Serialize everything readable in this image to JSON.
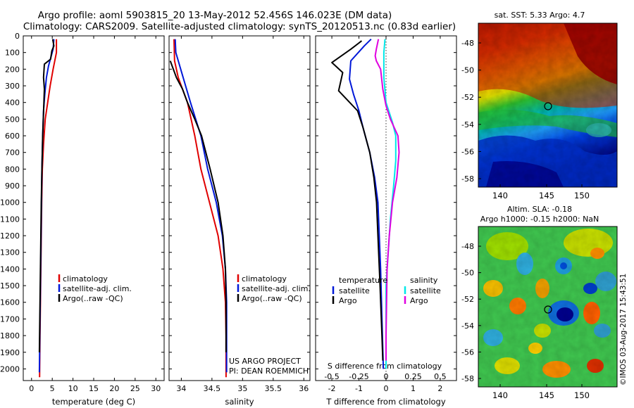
{
  "title": {
    "line1": "Argo profile: aoml 5903815_20 13-May-2012 52.456S 146.023E (DM data)",
    "line2": "Climatology: CARS2009. Satellite-adjusted climatology: synTS_20120513.nc (0.83d earlier)"
  },
  "colors": {
    "climatology": "#e00000",
    "satellite": "#0018d8",
    "argo": "#000000",
    "satellite_s": "#00e8e8",
    "argo_s": "#e000e0"
  },
  "chart_data": [
    {
      "type": "line",
      "name": "temperature",
      "xlabel": "temperature (deg C)",
      "ylabel": "",
      "xlim": [
        -2,
        32
      ],
      "ylim": [
        2070,
        0
      ],
      "xticks": [
        0,
        5,
        10,
        15,
        20,
        25,
        30
      ],
      "yticks": [
        0,
        100,
        200,
        300,
        400,
        500,
        600,
        700,
        800,
        900,
        1000,
        1100,
        1200,
        1300,
        1400,
        1500,
        1600,
        1700,
        1800,
        1900,
        2000
      ],
      "legend": [
        "climatology",
        "satellite-adj. clim.",
        "Argo(..raw -QC)"
      ],
      "series": [
        {
          "name": "climatology",
          "color": "#e00000",
          "points": [
            [
              6,
              20
            ],
            [
              6,
              100
            ],
            [
              5.2,
              200
            ],
            [
              4.5,
              300
            ],
            [
              3.9,
              400
            ],
            [
              3.3,
              500
            ],
            [
              2.9,
              650
            ],
            [
              2.6,
              800
            ],
            [
              2.45,
              1000
            ],
            [
              2.35,
              1200
            ],
            [
              2.2,
              1500
            ],
            [
              2.05,
              1800
            ],
            [
              1.95,
              2050
            ]
          ]
        },
        {
          "name": "satellite-adj. clim.",
          "color": "#0018d8",
          "points": [
            [
              5.4,
              20
            ],
            [
              5.2,
              80
            ],
            [
              4.1,
              180
            ],
            [
              3.6,
              250
            ],
            [
              3.2,
              350
            ],
            [
              2.9,
              450
            ],
            [
              2.7,
              600
            ],
            [
              2.5,
              800
            ],
            [
              2.4,
              1000
            ],
            [
              2.3,
              1200
            ],
            [
              2.15,
              1500
            ],
            [
              2.0,
              1800
            ],
            [
              1.9,
              2020
            ]
          ]
        },
        {
          "name": "Argo(..raw -QC)",
          "color": "#000000",
          "points": [
            [
              5.1,
              20
            ],
            [
              5.4,
              60
            ],
            [
              4.9,
              90
            ],
            [
              4.6,
              140
            ],
            [
              3.1,
              170
            ],
            [
              2.9,
              250
            ],
            [
              3.1,
              320
            ],
            [
              3.0,
              390
            ],
            [
              2.9,
              460
            ],
            [
              2.7,
              600
            ],
            [
              2.5,
              800
            ],
            [
              2.35,
              1000
            ],
            [
              2.2,
              1300
            ],
            [
              2.05,
              1600
            ],
            [
              1.9,
              1900
            ]
          ]
        }
      ]
    },
    {
      "type": "line",
      "name": "salinity",
      "xlabel": "salinity",
      "xlim": [
        33.8,
        36.1
      ],
      "ylim": [
        2070,
        0
      ],
      "xticks": [
        34,
        34.5,
        35,
        35.5,
        36
      ],
      "legend": [
        "climatology",
        "satellite-adj. clim.",
        "Argo(..raw -QC)"
      ],
      "annotation": [
        "US ARGO PROJECT",
        "PI: DEAN ROEMMICH"
      ],
      "series": [
        {
          "name": "climatology",
          "color": "#e00000",
          "points": [
            [
              33.88,
              20
            ],
            [
              33.89,
              150
            ],
            [
              33.95,
              250
            ],
            [
              34.1,
              400
            ],
            [
              34.22,
              600
            ],
            [
              34.32,
              800
            ],
            [
              34.46,
              1000
            ],
            [
              34.6,
              1200
            ],
            [
              34.68,
              1400
            ],
            [
              34.72,
              1600
            ],
            [
              34.73,
              1800
            ],
            [
              34.73,
              2050
            ]
          ]
        },
        {
          "name": "satellite-adj. clim.",
          "color": "#0018d8",
          "points": [
            [
              33.9,
              20
            ],
            [
              33.91,
              100
            ],
            [
              33.99,
              200
            ],
            [
              34.15,
              400
            ],
            [
              34.32,
              600
            ],
            [
              34.43,
              800
            ],
            [
              34.57,
              1000
            ],
            [
              34.67,
              1200
            ],
            [
              34.72,
              1400
            ],
            [
              34.74,
              1600
            ],
            [
              34.74,
              1800
            ],
            [
              34.74,
              2020
            ]
          ]
        },
        {
          "name": "Argo(..raw -QC)",
          "color": "#000000",
          "points": [
            [
              33.82,
              150
            ],
            [
              33.85,
              180
            ],
            [
              33.92,
              250
            ],
            [
              34.02,
              320
            ],
            [
              34.1,
              400
            ],
            [
              34.22,
              500
            ],
            [
              34.33,
              600
            ],
            [
              34.47,
              800
            ],
            [
              34.6,
              1000
            ],
            [
              34.68,
              1200
            ],
            [
              34.72,
              1400
            ],
            [
              34.73,
              1600
            ],
            [
              34.73,
              1900
            ]
          ]
        }
      ]
    },
    {
      "type": "line",
      "name": "difference",
      "xlabel": "T difference from climatology",
      "xlabel_top": "S difference from climatology",
      "xlim": [
        -2.6,
        2.6
      ],
      "ylim": [
        2070,
        0
      ],
      "xticks": [
        -2,
        -1,
        0,
        1,
        2
      ],
      "xticks_s": [
        -0.5,
        -0.25,
        0,
        0.25,
        0.5
      ],
      "legend": {
        "temperature_title": "temperature",
        "salinity_title": "salinity",
        "items_t": [
          "satellite",
          "Argo"
        ],
        "items_s": [
          "satellite",
          "Argo"
        ]
      },
      "series": [
        {
          "name": "T satellite",
          "color": "#0018d8",
          "points": [
            [
              -0.55,
              20
            ],
            [
              -0.8,
              60
            ],
            [
              -1.3,
              150
            ],
            [
              -1.35,
              260
            ],
            [
              -1.2,
              350
            ],
            [
              -1.0,
              450
            ],
            [
              -0.85,
              550
            ],
            [
              -0.6,
              700
            ],
            [
              -0.42,
              850
            ],
            [
              -0.3,
              1000
            ],
            [
              -0.25,
              1200
            ],
            [
              -0.2,
              1400
            ],
            [
              -0.15,
              1700
            ],
            [
              -0.1,
              2000
            ]
          ]
        },
        {
          "name": "T Argo",
          "color": "#000000",
          "points": [
            [
              -0.9,
              30
            ],
            [
              -1.3,
              80
            ],
            [
              -2.0,
              160
            ],
            [
              -1.6,
              220
            ],
            [
              -1.75,
              330
            ],
            [
              -1.4,
              390
            ],
            [
              -1.05,
              450
            ],
            [
              -0.85,
              550
            ],
            [
              -0.6,
              700
            ],
            [
              -0.45,
              850
            ],
            [
              -0.35,
              1000
            ],
            [
              -0.3,
              1200
            ],
            [
              -0.22,
              1500
            ],
            [
              -0.15,
              1800
            ],
            [
              -0.12,
              1950
            ]
          ]
        },
        {
          "name": "S satellite",
          "color": "#00e8e8",
          "points": [
            [
              -0.01,
              20
            ],
            [
              -0.02,
              100
            ],
            [
              -0.02,
              250
            ],
            [
              0.0,
              400
            ],
            [
              0.06,
              520
            ],
            [
              0.09,
              600
            ],
            [
              0.09,
              750
            ],
            [
              0.07,
              900
            ],
            [
              0.04,
              1100
            ],
            [
              0.02,
              1300
            ],
            [
              0.0,
              1500
            ],
            [
              0.0,
              1700
            ],
            [
              0.0,
              2000
            ]
          ]
        },
        {
          "name": "S Argo",
          "color": "#e000e0",
          "points": [
            [
              -0.07,
              20
            ],
            [
              -0.09,
              80
            ],
            [
              -0.1,
              120
            ],
            [
              -0.09,
              150
            ],
            [
              -0.05,
              200
            ],
            [
              -0.03,
              320
            ],
            [
              0.0,
              420
            ],
            [
              0.04,
              500
            ],
            [
              0.11,
              600
            ],
            [
              0.12,
              700
            ],
            [
              0.1,
              850
            ],
            [
              0.06,
              1000
            ],
            [
              0.03,
              1200
            ],
            [
              0.01,
              1400
            ],
            [
              0.0,
              1800
            ],
            [
              0.0,
              1950
            ]
          ]
        }
      ]
    }
  ],
  "maps": {
    "sst": {
      "title": "sat. SST: 5.33 Argo: 4.7",
      "yticks": [
        "-48",
        "-50",
        "-52",
        "-54",
        "-56",
        "-58"
      ],
      "xticks": [
        "140",
        "145",
        "150"
      ]
    },
    "sla": {
      "title1": "Altim. SLA: -0.18",
      "title2": "Argo h1000: -0.15 h2000: NaN",
      "yticks": [
        "-48",
        "-50",
        "-52",
        "-54",
        "-56",
        "-58"
      ],
      "xticks": [
        "140",
        "145",
        "150"
      ]
    }
  },
  "watermark": "©IMOS 03-Aug-2017 15:43:51"
}
